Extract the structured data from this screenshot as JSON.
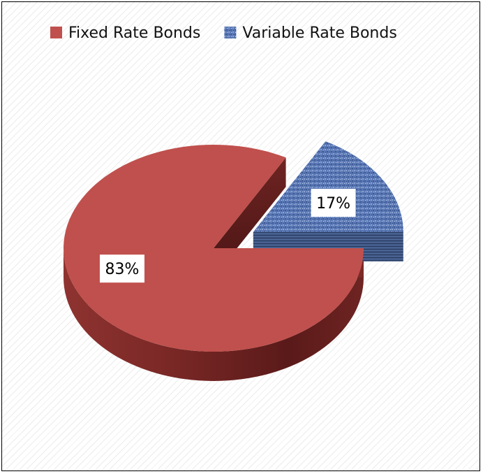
{
  "chart_data": {
    "type": "pie",
    "three_d": true,
    "legend_position": "top",
    "slices": [
      {
        "label": "Fixed Rate Bonds",
        "value": 83,
        "display": "83%",
        "color": "#c0504d",
        "exploded": false
      },
      {
        "label": "Variable Rate Bonds",
        "value": 17,
        "display": "17%",
        "color": "#4f6fae",
        "pattern": "textured",
        "exploded": true
      }
    ]
  }
}
